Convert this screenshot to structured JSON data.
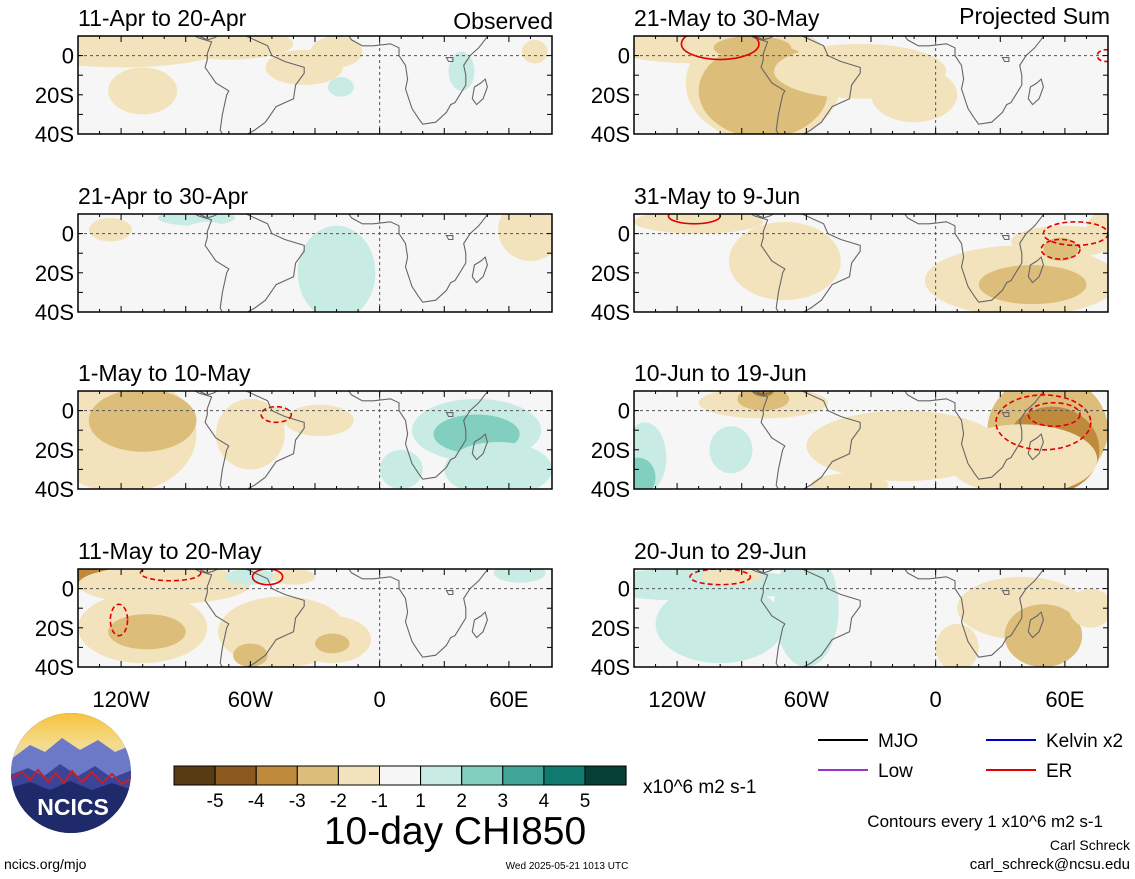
{
  "figure": {
    "title": "10-day CHI850",
    "unit_label": "x10^6 m2 s-1",
    "contour_note": "Contours every 1 x10^6 m2 s-1",
    "footer_left": "ncics.org/mjo",
    "timestamp": "Wed 2025-05-21 1013 UTC",
    "author_name": "Carl Schreck",
    "author_email": "carl_schreck@ncsu.edu",
    "logo_text": "NCICS"
  },
  "columns": [
    {
      "label": "Observed"
    },
    {
      "label": "Projected Sum"
    }
  ],
  "panels": [
    {
      "column": 0,
      "row": 0,
      "label": "11-Apr to 20-Apr"
    },
    {
      "column": 0,
      "row": 1,
      "label": "21-Apr to 30-Apr"
    },
    {
      "column": 0,
      "row": 2,
      "label": "1-May to 10-May"
    },
    {
      "column": 0,
      "row": 3,
      "label": "11-May to 20-May"
    },
    {
      "column": 1,
      "row": 0,
      "label": "21-May to 30-May"
    },
    {
      "column": 1,
      "row": 1,
      "label": "31-May to 9-Jun"
    },
    {
      "column": 1,
      "row": 2,
      "label": "10-Jun to 19-Jun"
    },
    {
      "column": 1,
      "row": 3,
      "label": "20-Jun to 29-Jun"
    }
  ],
  "axes": {
    "lat_ticks": [
      {
        "value": 0,
        "label": "0"
      },
      {
        "value": -20,
        "label": "20S"
      },
      {
        "value": -40,
        "label": "40S"
      }
    ],
    "lon_ticks": [
      {
        "value": -120,
        "label": "120W"
      },
      {
        "value": -60,
        "label": "60W"
      },
      {
        "value": 0,
        "label": "0"
      },
      {
        "value": 60,
        "label": "60E"
      }
    ],
    "lat_range": [
      -40,
      10
    ],
    "lon_range": [
      -140,
      80
    ],
    "reference_lines": {
      "lat": 0,
      "lon": 0
    }
  },
  "colorbar": {
    "tick_labels": [
      "-5",
      "-4",
      "-3",
      "-2",
      "-1",
      "1",
      "2",
      "3",
      "4",
      "5"
    ],
    "colors": [
      "#5a3c12",
      "#8c5a1e",
      "#bf8a3c",
      "#dcbd7a",
      "#f3e3bc",
      "#f6f6f6",
      "#c8ebe3",
      "#82cfc0",
      "#3fa596",
      "#107a6e",
      "#063f36"
    ]
  },
  "legend": [
    {
      "label": "MJO",
      "color": "#000000"
    },
    {
      "label": "Kelvin x2",
      "color": "#0000cc"
    },
    {
      "label": "Low",
      "color": "#9933cc"
    },
    {
      "label": "ER",
      "color": "#e00000"
    }
  ]
}
